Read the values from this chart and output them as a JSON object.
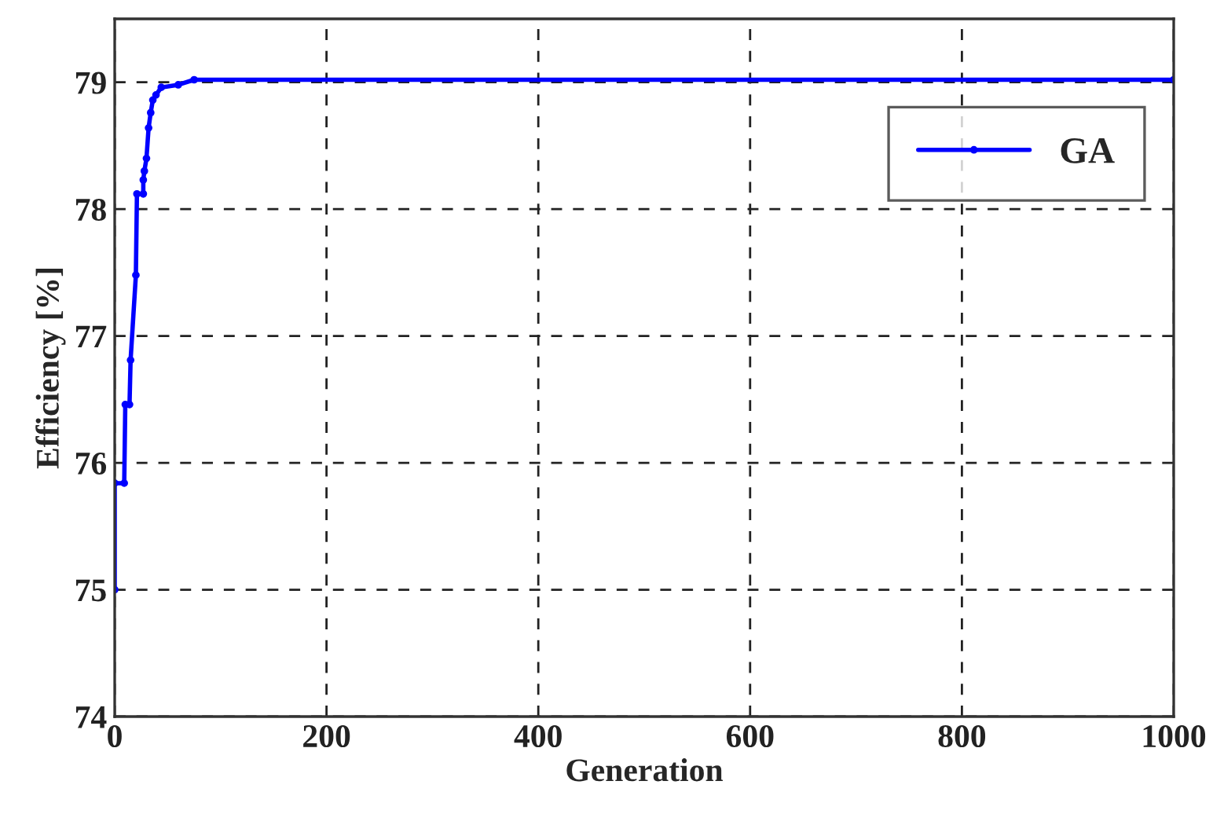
{
  "chart_data": {
    "type": "line",
    "xlabel": "Generation",
    "ylabel": "Efficiency [%]",
    "x": [
      0,
      0,
      9,
      10,
      14,
      15,
      20,
      21,
      27,
      27,
      28,
      30,
      32,
      34,
      36,
      39,
      44,
      60,
      75,
      1000
    ],
    "series": [
      {
        "name": "GA",
        "color": "#0000ff",
        "values": [
          75.0,
          75.84,
          75.84,
          76.46,
          76.46,
          76.81,
          77.48,
          78.12,
          78.12,
          78.23,
          78.3,
          78.4,
          78.64,
          78.76,
          78.86,
          78.9,
          78.96,
          78.98,
          79.02,
          79.02
        ]
      }
    ],
    "xlim": [
      0,
      1000
    ],
    "xticks": [
      0,
      200,
      400,
      600,
      800,
      1000
    ],
    "ylim": [
      74,
      79.5
    ],
    "yticks": [
      74,
      75,
      76,
      77,
      78,
      79
    ],
    "grid": true,
    "legend": "top right",
    "marker": "circle",
    "line_style": "solid"
  }
}
